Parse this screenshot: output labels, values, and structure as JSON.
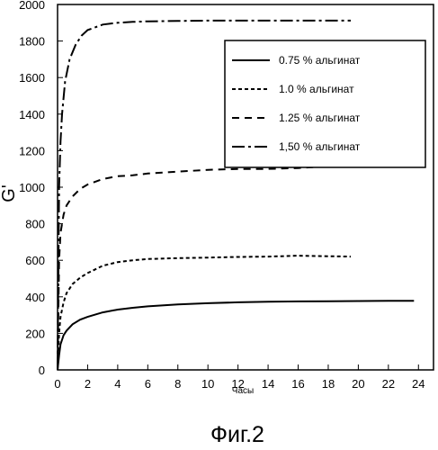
{
  "chart_data": {
    "type": "line",
    "xlabel": "Часы",
    "ylabel": "G'",
    "caption": "Фиг.2",
    "xlim": [
      0,
      25
    ],
    "ylim": [
      0,
      2000
    ],
    "xticks": [
      0,
      2,
      4,
      6,
      8,
      10,
      12,
      14,
      16,
      18,
      20,
      22,
      24
    ],
    "yticks": [
      0,
      200,
      400,
      600,
      800,
      1000,
      1200,
      1400,
      1600,
      1800,
      2000
    ],
    "grid": false,
    "legend_position": "top-right",
    "series": [
      {
        "name": "0.75 % альгинат",
        "dash": "solid",
        "x": [
          0,
          0.1,
          0.2,
          0.4,
          0.6,
          1,
          1.5,
          2,
          3,
          4,
          5,
          6,
          8,
          10,
          12,
          14,
          16,
          18,
          20,
          22,
          23.7
        ],
        "y": [
          0,
          80,
          140,
          190,
          215,
          250,
          275,
          290,
          315,
          330,
          340,
          348,
          358,
          365,
          370,
          373,
          375,
          376,
          377,
          378,
          378
        ]
      },
      {
        "name": "1.0 % альгинат",
        "dash": "short-dash",
        "x": [
          0,
          0.1,
          0.2,
          0.4,
          0.6,
          1,
          1.5,
          2,
          3,
          4,
          5,
          6,
          8,
          10,
          12,
          14,
          16,
          18,
          19.5
        ],
        "y": [
          0,
          200,
          290,
          370,
          420,
          470,
          505,
          530,
          570,
          590,
          600,
          607,
          612,
          615,
          618,
          620,
          625,
          622,
          620
        ]
      },
      {
        "name": "1.25 % альгинат",
        "dash": "medium-dash",
        "x": [
          0,
          0.1,
          0.2,
          0.4,
          0.6,
          1,
          1.5,
          2,
          3,
          4,
          5,
          6,
          8,
          10,
          12,
          14,
          16,
          17
        ],
        "y": [
          0,
          600,
          750,
          850,
          900,
          950,
          990,
          1015,
          1045,
          1060,
          1065,
          1075,
          1085,
          1095,
          1100,
          1100,
          1105,
          1110
        ]
      },
      {
        "name": "1,50 % альгинат",
        "dash": "dash-dot",
        "x": [
          0,
          0.1,
          0.2,
          0.3,
          0.5,
          0.8,
          1.2,
          1.6,
          2,
          3,
          4,
          5,
          6,
          8,
          10,
          12,
          14,
          16,
          18,
          19.5
        ],
        "y": [
          0,
          1000,
          1250,
          1400,
          1580,
          1700,
          1780,
          1830,
          1860,
          1890,
          1900,
          1905,
          1908,
          1910,
          1912,
          1912,
          1912,
          1912,
          1912,
          1912
        ]
      }
    ]
  }
}
